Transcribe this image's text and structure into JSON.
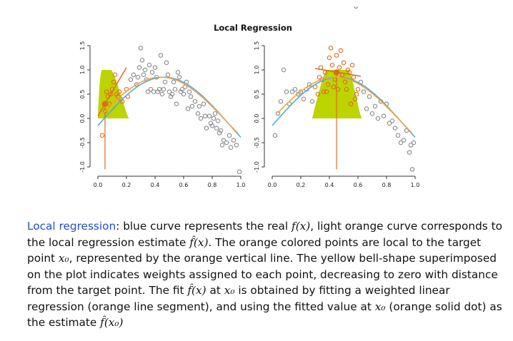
{
  "figure": {
    "title": "Local Regression",
    "page_marker": "ᴗ"
  },
  "chart_data": [
    {
      "type": "scatter",
      "title": "Local Regression",
      "xlim": [
        0.0,
        1.0
      ],
      "ylim": [
        -1.0,
        1.5
      ],
      "x_ticks": [
        "0.0",
        "0.2",
        "0.4",
        "0.6",
        "0.8",
        "1.0"
      ],
      "y_ticks": [
        "-1.0",
        "-0.5",
        "0.0",
        "0.5",
        "1.0",
        "1.5"
      ],
      "target_x0": 0.05,
      "estimate_y": 0.3,
      "local_fit_segment": {
        "x": [
          0.0,
          0.2
        ],
        "y": [
          0.05,
          1.05
        ]
      },
      "weight_kernel": {
        "left": 0.0,
        "top_left": 0.03,
        "top_right": 0.09,
        "right": 0.22,
        "height": 1.0
      },
      "series": [
        {
          "name": "",
          "role": "points",
          "x": [
            0.03,
            0.05,
            0.06,
            0.07,
            0.08,
            0.09,
            0.1,
            0.11,
            0.12,
            0.13,
            0.14,
            0.15,
            0.16,
            0.17,
            0.2,
            0.21,
            0.23,
            0.25,
            0.27,
            0.28,
            0.29,
            0.3,
            0.31,
            0.32,
            0.33,
            0.34,
            0.35,
            0.36,
            0.37,
            0.38,
            0.39,
            0.4,
            0.41,
            0.42,
            0.43,
            0.44,
            0.45,
            0.46,
            0.47,
            0.48,
            0.49,
            0.5,
            0.51,
            0.52,
            0.53,
            0.54,
            0.55,
            0.56,
            0.57,
            0.58,
            0.59,
            0.6,
            0.61,
            0.62,
            0.63,
            0.64,
            0.65,
            0.66,
            0.68,
            0.7,
            0.71,
            0.72,
            0.74,
            0.75,
            0.76,
            0.78,
            0.79,
            0.8,
            0.81,
            0.82,
            0.83,
            0.84,
            0.85,
            0.86,
            0.87,
            0.88,
            0.9,
            0.92,
            0.93,
            0.95,
            0.97,
            0.99
          ],
          "y": [
            -0.35,
            0.15,
            0.55,
            0.45,
            0.3,
            0.5,
            0.6,
            0.75,
            0.9,
            0.5,
            0.45,
            0.55,
            0.4,
            0.35,
            0.6,
            0.45,
            0.8,
            0.9,
            0.7,
            0.85,
            1.05,
            1.45,
            1.2,
            0.9,
            1.0,
            0.8,
            0.55,
            1.1,
            0.6,
            0.95,
            0.55,
            1.05,
            0.85,
            0.55,
            0.6,
            1.3,
            0.5,
            0.6,
            0.75,
            1.15,
            0.9,
            0.55,
            0.45,
            0.5,
            0.75,
            0.6,
            0.3,
            0.95,
            0.85,
            0.55,
            0.6,
            0.5,
            0.65,
            0.75,
            0.2,
            0.55,
            0.45,
            0.25,
            0.35,
            0.1,
            0.25,
            0.0,
            0.3,
            0.05,
            -0.2,
            0.05,
            -0.1,
            -0.15,
            0.0,
            0.1,
            -0.2,
            -0.05,
            -0.3,
            -0.25,
            -0.55,
            -0.45,
            -0.5,
            -0.35,
            -0.6,
            -0.45,
            -0.55,
            -1.1
          ],
          "local_count": 16
        },
        {
          "name": "",
          "role": "true-function",
          "color": "#5aa9dc"
        },
        {
          "name": "",
          "role": "local-regression-estimate",
          "color": "#f4a340"
        }
      ]
    },
    {
      "type": "scatter",
      "xlim": [
        0.0,
        1.0
      ],
      "ylim": [
        -1.0,
        1.5
      ],
      "x_ticks": [
        "0.0",
        "0.2",
        "0.4",
        "0.6",
        "0.8",
        "1.0"
      ],
      "y_ticks": [
        "-1.0",
        "-0.5",
        "0.0",
        "0.5",
        "1.0",
        "1.5"
      ],
      "target_x0": 0.45,
      "estimate_y": 0.95,
      "local_fit_segment": {
        "x": [
          0.3,
          0.62
        ],
        "y": [
          1.03,
          0.87
        ]
      },
      "weight_kernel": {
        "left": 0.28,
        "top_left": 0.38,
        "top_right": 0.53,
        "right": 0.63,
        "height": 1.0
      },
      "series": [
        {
          "name": "",
          "role": "points",
          "x": [
            0.02,
            0.04,
            0.06,
            0.08,
            0.1,
            0.12,
            0.14,
            0.16,
            0.18,
            0.2,
            0.22,
            0.24,
            0.26,
            0.28,
            0.3,
            0.32,
            0.33,
            0.34,
            0.35,
            0.36,
            0.37,
            0.38,
            0.39,
            0.4,
            0.41,
            0.42,
            0.43,
            0.44,
            0.45,
            0.46,
            0.47,
            0.48,
            0.49,
            0.5,
            0.51,
            0.52,
            0.53,
            0.54,
            0.55,
            0.56,
            0.57,
            0.58,
            0.59,
            0.6,
            0.62,
            0.64,
            0.66,
            0.68,
            0.7,
            0.72,
            0.74,
            0.76,
            0.78,
            0.8,
            0.82,
            0.84,
            0.86,
            0.88,
            0.9,
            0.92,
            0.94,
            0.96,
            0.97,
            0.98,
            0.99
          ],
          "y": [
            -0.35,
            0.1,
            0.35,
            1.0,
            0.55,
            0.3,
            0.55,
            0.6,
            0.5,
            0.55,
            0.4,
            0.6,
            0.7,
            0.35,
            0.65,
            0.5,
            0.85,
            1.05,
            0.8,
            0.55,
            0.95,
            0.55,
            0.7,
            1.25,
            1.45,
            1.1,
            0.65,
            0.8,
            1.3,
            0.6,
            1.05,
            1.4,
            0.9,
            1.15,
            0.75,
            0.6,
            1.0,
            0.95,
            0.3,
            1.1,
            0.85,
            0.4,
            0.5,
            0.6,
            0.75,
            0.55,
            0.2,
            0.45,
            0.1,
            0.25,
            0.0,
            0.35,
            0.05,
            0.3,
            -0.1,
            -0.05,
            -0.2,
            -0.35,
            -0.5,
            -0.45,
            -0.25,
            -0.7,
            -0.55,
            -1.05,
            -0.5
          ],
          "local_count": 30
        },
        {
          "name": "",
          "role": "true-function",
          "color": "#5aa9dc"
        },
        {
          "name": "",
          "role": "local-regression-estimate",
          "color": "#f4a340"
        }
      ]
    }
  ],
  "colors": {
    "point": "#8a8a8a",
    "local_point": "#e06b1e",
    "target_line": "#e06b1e",
    "kernel": "#bcd400",
    "true_curve": "#5aa9dc",
    "estimate_curve": "#f4a340",
    "axis": "#333333",
    "caption_highlight": "#1f4fd6"
  },
  "caption": {
    "term": "Local regression",
    "p1": ": blue curve represents the real ",
    "fx": "f(x)",
    "p2": ", light orange curve corresponds to the local regression estimate ",
    "fhat": "f̂(x)",
    "p3": ". The orange colored points are local to the target point ",
    "x0": "x₀",
    "p4": ", represented by the orange vertical line. The yellow bell-shape superimposed on the plot indicates weights assigned to each point, decreasing to zero with distance from the target point. The fit ",
    "fhat2": "f̂(x)",
    "p5": " at ",
    "x0b": "x₀",
    "p6": " is obtained by fitting a weighted linear regression (orange line segment), and using the fitted value at ",
    "x0c": "x₀",
    "p7": " (orange solid dot) as the estimate ",
    "fhatx0": "f̂(x₀)"
  }
}
